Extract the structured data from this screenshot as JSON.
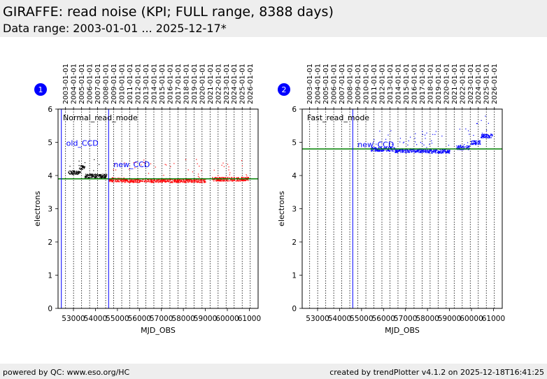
{
  "header": {
    "title": "GIRAFFE: read noise (KPI; FULL range, 8388 days)",
    "subtitle": "Data range: 2003-01-01 ... 2025-12-17*"
  },
  "footer": {
    "left": "powered by QC: www.eso.org/HC",
    "right": "created by trendPlotter v4.1.2 on 2025-12-18T16:41:25"
  },
  "colors": {
    "old_ccd": "#000000",
    "new_ccd_normal": "#ff0000",
    "fast": "#0000ff",
    "reference": "#008000",
    "badge": "#0000ff"
  },
  "chart_data": [
    {
      "type": "scatter",
      "badge": "1",
      "title": "Normal_read_mode",
      "xlabel": "MJD_OBS",
      "ylabel": "electrons",
      "xlim": [
        52300,
        61400
      ],
      "ylim": [
        0,
        6
      ],
      "xticks": [
        53000,
        54000,
        55000,
        56000,
        57000,
        58000,
        59000,
        60000,
        61000
      ],
      "yticks": [
        0,
        1,
        2,
        3,
        4,
        5,
        6
      ],
      "year_labels": [
        "2003-01-01",
        "2004-01-01",
        "2005-01-01",
        "2006-01-01",
        "2007-01-01",
        "2008-01-01",
        "2009-01-01",
        "2010-01-01",
        "2011-01-01",
        "2012-01-01",
        "2013-01-01",
        "2014-01-01",
        "2015-01-01",
        "2016-01-01",
        "2017-01-01",
        "2018-01-01",
        "2019-01-01",
        "2020-01-01",
        "2021-01-01",
        "2022-01-01",
        "2023-01-01",
        "2024-01-01",
        "2025-01-01",
        "2026-01-01"
      ],
      "year_mjd": [
        52640,
        53005,
        53371,
        53736,
        54101,
        54466,
        54832,
        55197,
        55562,
        55927,
        56293,
        56658,
        57023,
        57388,
        57754,
        58119,
        58484,
        58849,
        59215,
        59580,
        59945,
        60310,
        60676,
        61041
      ],
      "reference_level": 3.9,
      "vlines": [
        {
          "mjd": 52450,
          "label": ""
        },
        {
          "mjd": 54600,
          "label": "new_CCD"
        }
      ],
      "annotations": [
        {
          "text": "old_CCD",
          "mjd": 52480,
          "y": 4.9
        },
        {
          "text": "new_CCD",
          "mjd": 54630,
          "y": 4.25
        }
      ],
      "series": [
        {
          "name": "old CCD",
          "color": "#000000",
          "x_range": [
            52750,
            54500
          ],
          "segments": [
            [
              52750,
              53300,
              4.1
            ],
            [
              53300,
              53500,
              4.25
            ],
            [
              53500,
              54500,
              4.0
            ]
          ]
        },
        {
          "name": "new CCD",
          "color": "#ff0000",
          "x_range": [
            54600,
            60950
          ],
          "segments": [
            [
              54600,
              55300,
              3.88
            ],
            [
              55300,
              59000,
              3.86
            ],
            [
              59300,
              60950,
              3.9
            ]
          ]
        }
      ]
    },
    {
      "type": "scatter",
      "badge": "2",
      "title": "Fast_read_mode",
      "xlabel": "MJD_OBS",
      "ylabel": "electrons",
      "xlim": [
        52300,
        61400
      ],
      "ylim": [
        0,
        6
      ],
      "xticks": [
        53000,
        54000,
        55000,
        56000,
        57000,
        58000,
        59000,
        60000,
        61000
      ],
      "yticks": [
        0,
        1,
        2,
        3,
        4,
        5,
        6
      ],
      "year_labels": [
        "2003-01-01",
        "2004-01-01",
        "2005-01-01",
        "2006-01-01",
        "2007-01-01",
        "2008-01-01",
        "2009-01-01",
        "2010-01-01",
        "2011-01-01",
        "2012-01-01",
        "2013-01-01",
        "2014-01-01",
        "2015-01-01",
        "2016-01-01",
        "2017-01-01",
        "2018-01-01",
        "2019-01-01",
        "2020-01-01",
        "2021-01-01",
        "2022-01-01",
        "2023-01-01",
        "2024-01-01",
        "2025-01-01",
        "2026-01-01"
      ],
      "year_mjd": [
        52640,
        53005,
        53371,
        53736,
        54101,
        54466,
        54832,
        55197,
        55562,
        55927,
        56293,
        56658,
        57023,
        57388,
        57754,
        58119,
        58484,
        58849,
        59215,
        59580,
        59945,
        60310,
        60676,
        61041
      ],
      "reference_level": 4.8,
      "vlines": [
        {
          "mjd": 54600,
          "label": "new_CCD"
        }
      ],
      "annotations": [
        {
          "text": "new_CCD",
          "mjd": 54630,
          "y": 4.85
        }
      ],
      "series": [
        {
          "name": "fast",
          "color": "#0000ff",
          "x_range": [
            55400,
            60950
          ],
          "segments": [
            [
              55400,
              56500,
              4.8
            ],
            [
              56500,
              58000,
              4.76
            ],
            [
              58000,
              59000,
              4.74
            ],
            [
              59300,
              59900,
              4.85
            ],
            [
              59950,
              60400,
              5.0
            ],
            [
              60400,
              60950,
              5.2
            ]
          ]
        }
      ]
    }
  ]
}
